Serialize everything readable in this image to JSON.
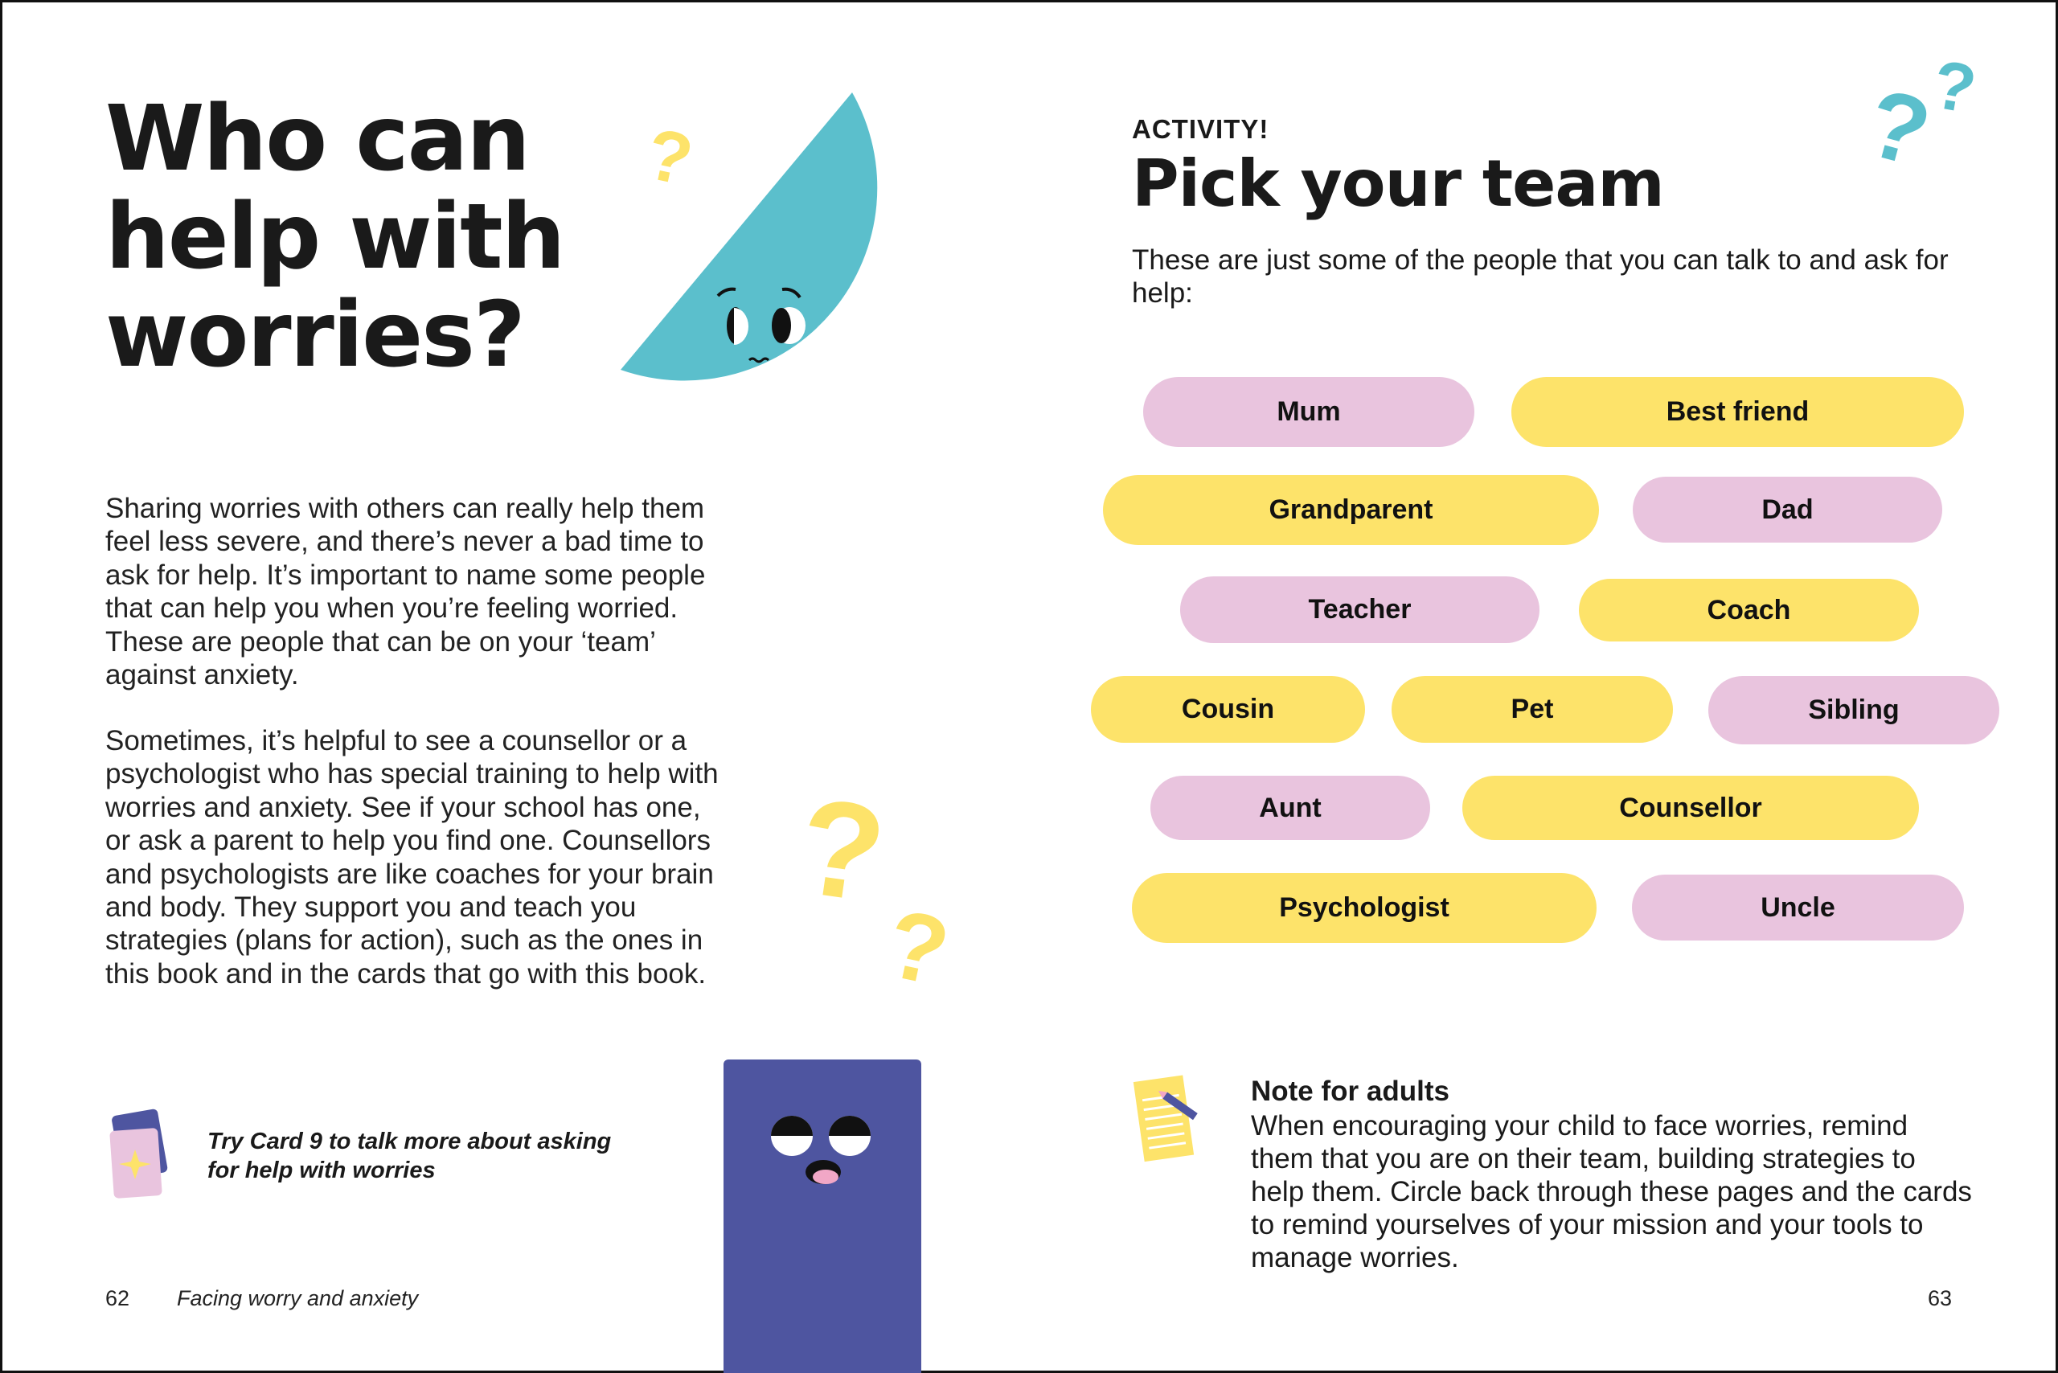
{
  "left_page": {
    "title": "Who can help with worries?",
    "paragraph_1": "Sharing worries with others can really help them feel less severe, and there’s never a bad time to ask for help. It’s important to name some people that can help you when you’re feeling worried. These are people that can be on your ‘team’ against anxiety.",
    "paragraph_2": "Sometimes, it’s helpful to see a counsellor or a psychologist who has special training to help with worries and anxiety. See if your school has one, or ask a parent to help you find one. Counsellors and psychologists are like coaches for your brain and body. They support you and teach you strategies (plans for action), such as the ones in this book and in the cards that go with this book.",
    "card_tip": "Try Card 9 to talk more about asking for help with worries",
    "page_number": "62",
    "section_title": "Facing worry and anxiety"
  },
  "right_page": {
    "label": "ACTIVITY!",
    "heading": "Pick your team",
    "intro": "These are just some of the people that you can talk to and ask for help:",
    "team": [
      "Mum",
      "Best friend",
      "Grandparent",
      "Dad",
      "Teacher",
      "Coach",
      "Cousin",
      "Pet",
      "Sibling",
      "Aunt",
      "Counsellor",
      "Psychologist",
      "Uncle"
    ],
    "note_title": "Note for adults",
    "note_body": "When encouraging your child to face worries, remind them that you are on their team, building strategies to help them. Circle back through these pages and the cards to remind yourselves of your mission and your tools to manage worries.",
    "page_number": "63"
  },
  "colors": {
    "pink": "#e9c4de",
    "yellow": "#fde36a",
    "teal": "#5bbfcc",
    "purple": "#4e55a0"
  }
}
